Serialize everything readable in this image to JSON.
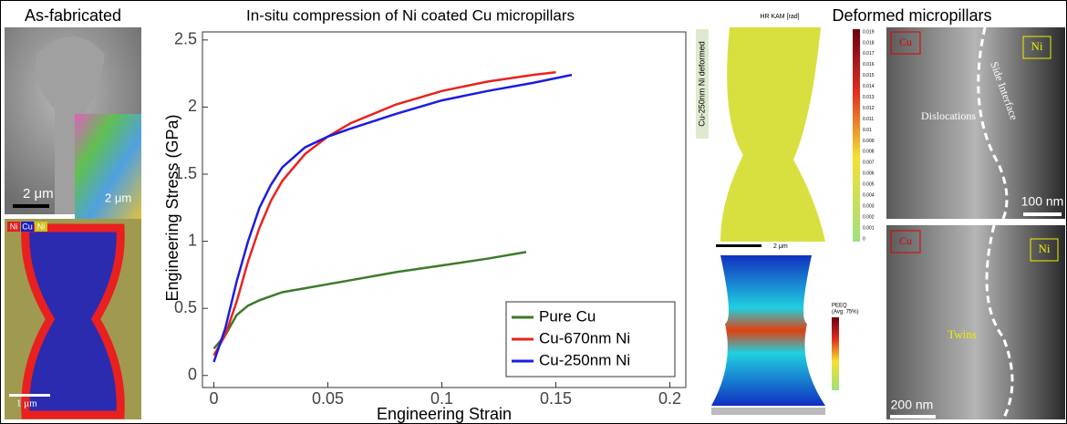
{
  "chart_data": {
    "type": "line",
    "title": "In-situ compression of Ni coated Cu micropillars",
    "xlabel": "Engineering Strain",
    "ylabel": "Engineering Stress (GPa)",
    "xlim": [
      -0.005,
      0.207
    ],
    "ylim": [
      -0.09,
      2.56
    ],
    "xticks": [
      0,
      0.05,
      0.1,
      0.15,
      0.2
    ],
    "yticks": [
      0,
      0.5,
      1,
      1.5,
      2,
      2.5
    ],
    "legend": "lower right",
    "series": [
      {
        "name": "Pure Cu",
        "color": "#3d7a2a",
        "x": [
          0,
          0.005,
          0.01,
          0.015,
          0.02,
          0.03,
          0.04,
          0.05,
          0.06,
          0.08,
          0.1,
          0.12,
          0.137
        ],
        "values": [
          0.2,
          0.3,
          0.45,
          0.52,
          0.56,
          0.62,
          0.65,
          0.68,
          0.71,
          0.77,
          0.82,
          0.87,
          0.92
        ]
      },
      {
        "name": "Cu-670nm Ni",
        "color": "#e8231f",
        "x": [
          0,
          0.005,
          0.01,
          0.015,
          0.02,
          0.025,
          0.03,
          0.04,
          0.05,
          0.06,
          0.08,
          0.1,
          0.12,
          0.14,
          0.15
        ],
        "values": [
          0.15,
          0.3,
          0.55,
          0.85,
          1.1,
          1.3,
          1.45,
          1.65,
          1.78,
          1.88,
          2.02,
          2.12,
          2.19,
          2.24,
          2.26
        ]
      },
      {
        "name": "Cu-250nm Ni",
        "color": "#1c1ce0",
        "x": [
          0,
          0.005,
          0.01,
          0.015,
          0.02,
          0.025,
          0.03,
          0.04,
          0.05,
          0.06,
          0.08,
          0.1,
          0.12,
          0.14,
          0.157
        ],
        "values": [
          0.1,
          0.35,
          0.7,
          1.0,
          1.25,
          1.42,
          1.55,
          1.7,
          1.78,
          1.84,
          1.95,
          2.05,
          2.12,
          2.18,
          2.24
        ]
      }
    ]
  },
  "panels": {
    "left_title": "As-fabricated",
    "right_title": "Deformed micropillars",
    "sem_scale": "2 μm",
    "ebsd_scale": "2 μm",
    "eds_labels": [
      "Ni",
      "Cu",
      "Ni"
    ],
    "eds_scale": "1 μm",
    "kam_title": "HR KAM [rad]",
    "kam_side": "Cu-250nm Ni deformed",
    "kam_ticks": [
      "0.019",
      "0.018",
      "0.017",
      "0.016",
      "0.015",
      "0.014",
      "0.013",
      "0.012",
      "0.011",
      "0.01",
      "0.009",
      "0.008",
      "0.007",
      "0.006",
      "0.005",
      "0.004",
      "0.003",
      "0.002",
      "0.001",
      "0"
    ],
    "kam_scale": "2 μm",
    "fem_title": "PEEQ",
    "fem_sub": "(Avg: 75%)",
    "tem_top": {
      "cu": "Cu",
      "ni": "Ni",
      "interface": "Side Interface",
      "note": "Dislocations",
      "scale": "100 nm"
    },
    "tem_bottom": {
      "cu": "Cu",
      "ni": "Ni",
      "note": "Twins",
      "scale": "200 nm"
    }
  }
}
